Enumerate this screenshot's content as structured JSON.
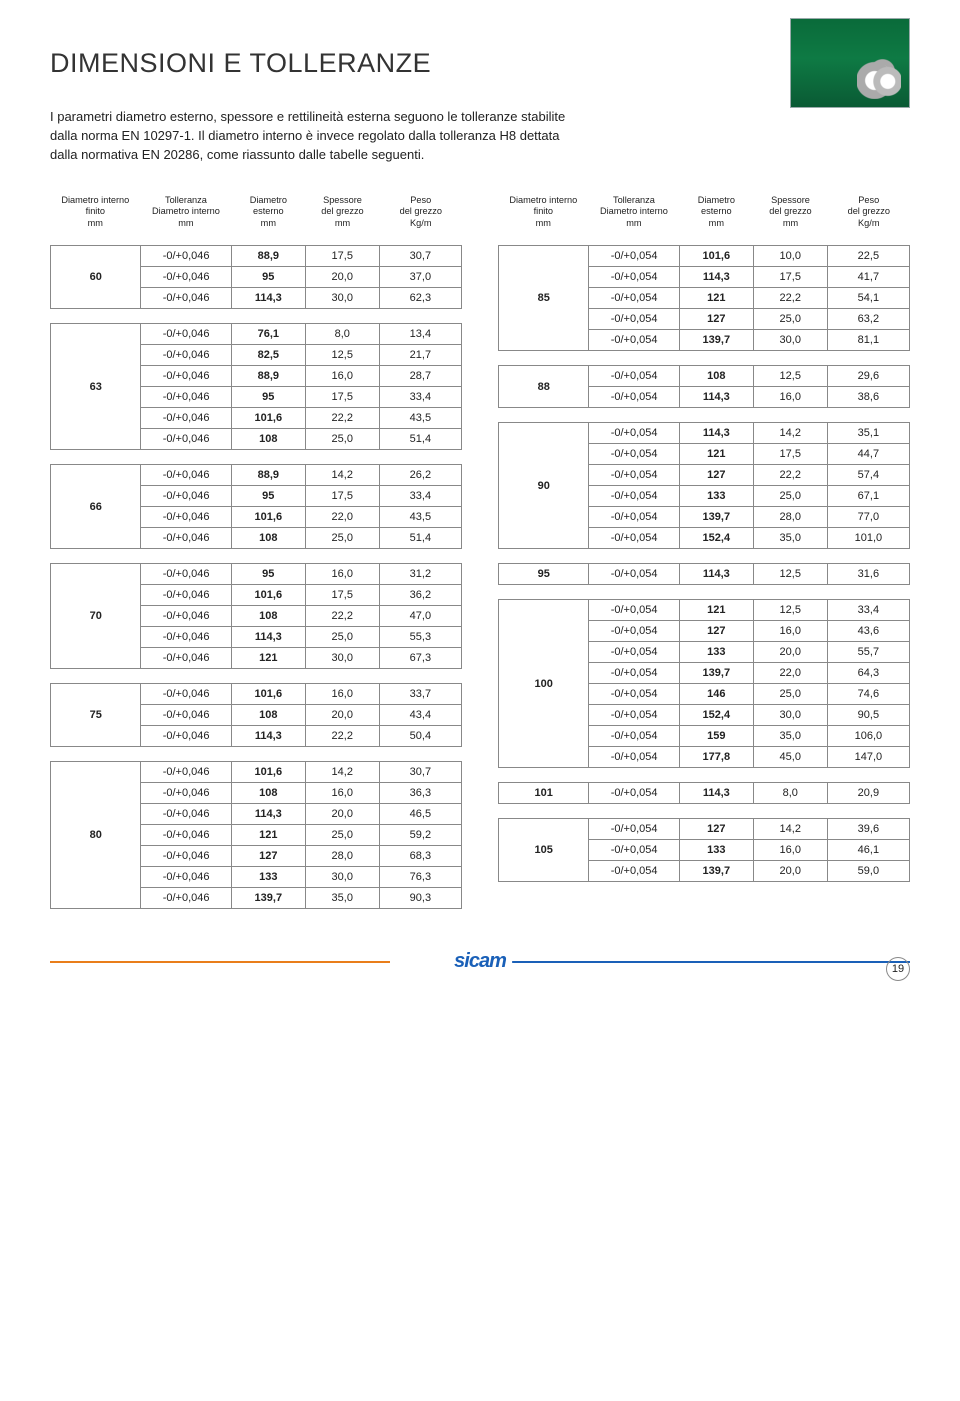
{
  "page": {
    "title": "DIMENSIONI E TOLLERANZE",
    "intro": "I parametri diametro esterno, spessore e rettilineità esterna seguono le tolleranze stabilite dalla norma EN 10297-1. Il diametro interno è invece regolato dalla tolleranza H8 dettata dalla normativa EN 20286, come riassunto dalle tabelle seguenti.",
    "pageNumber": "19",
    "logo": "sicam"
  },
  "columns": {
    "h1": [
      "Diametro interno",
      "finito",
      "mm"
    ],
    "h2": [
      "Tolleranza",
      "Diametro interno",
      "mm"
    ],
    "h3": [
      "Diametro",
      "esterno",
      "mm"
    ],
    "h4": [
      "Spessore",
      "del grezzo",
      "mm"
    ],
    "h5": [
      "Peso",
      "del grezzo",
      "Kg/m"
    ]
  },
  "colWidths": [
    "22%",
    "22%",
    "18%",
    "18%",
    "20%"
  ],
  "left": [
    {
      "id": "60",
      "rows": [
        [
          "-0/+0,046",
          "88,9",
          "17,5",
          "30,7"
        ],
        [
          "-0/+0,046",
          "95",
          "20,0",
          "37,0"
        ],
        [
          "-0/+0,046",
          "114,3",
          "30,0",
          "62,3"
        ]
      ]
    },
    {
      "id": "63",
      "rows": [
        [
          "-0/+0,046",
          "76,1",
          "8,0",
          "13,4"
        ],
        [
          "-0/+0,046",
          "82,5",
          "12,5",
          "21,7"
        ],
        [
          "-0/+0,046",
          "88,9",
          "16,0",
          "28,7"
        ],
        [
          "-0/+0,046",
          "95",
          "17,5",
          "33,4"
        ],
        [
          "-0/+0,046",
          "101,6",
          "22,2",
          "43,5"
        ],
        [
          "-0/+0,046",
          "108",
          "25,0",
          "51,4"
        ]
      ]
    },
    {
      "id": "66",
      "rows": [
        [
          "-0/+0,046",
          "88,9",
          "14,2",
          "26,2"
        ],
        [
          "-0/+0,046",
          "95",
          "17,5",
          "33,4"
        ],
        [
          "-0/+0,046",
          "101,6",
          "22,0",
          "43,5"
        ],
        [
          "-0/+0,046",
          "108",
          "25,0",
          "51,4"
        ]
      ]
    },
    {
      "id": "70",
      "rows": [
        [
          "-0/+0,046",
          "95",
          "16,0",
          "31,2"
        ],
        [
          "-0/+0,046",
          "101,6",
          "17,5",
          "36,2"
        ],
        [
          "-0/+0,046",
          "108",
          "22,2",
          "47,0"
        ],
        [
          "-0/+0,046",
          "114,3",
          "25,0",
          "55,3"
        ],
        [
          "-0/+0,046",
          "121",
          "30,0",
          "67,3"
        ]
      ]
    },
    {
      "id": "75",
      "rows": [
        [
          "-0/+0,046",
          "101,6",
          "16,0",
          "33,7"
        ],
        [
          "-0/+0,046",
          "108",
          "20,0",
          "43,4"
        ],
        [
          "-0/+0,046",
          "114,3",
          "22,2",
          "50,4"
        ]
      ]
    },
    {
      "id": "80",
      "rows": [
        [
          "-0/+0,046",
          "101,6",
          "14,2",
          "30,7"
        ],
        [
          "-0/+0,046",
          "108",
          "16,0",
          "36,3"
        ],
        [
          "-0/+0,046",
          "114,3",
          "20,0",
          "46,5"
        ],
        [
          "-0/+0,046",
          "121",
          "25,0",
          "59,2"
        ],
        [
          "-0/+0,046",
          "127",
          "28,0",
          "68,3"
        ],
        [
          "-0/+0,046",
          "133",
          "30,0",
          "76,3"
        ],
        [
          "-0/+0,046",
          "139,7",
          "35,0",
          "90,3"
        ]
      ]
    }
  ],
  "right": [
    {
      "id": "85",
      "rows": [
        [
          "-0/+0,054",
          "101,6",
          "10,0",
          "22,5"
        ],
        [
          "-0/+0,054",
          "114,3",
          "17,5",
          "41,7"
        ],
        [
          "-0/+0,054",
          "121",
          "22,2",
          "54,1"
        ],
        [
          "-0/+0,054",
          "127",
          "25,0",
          "63,2"
        ],
        [
          "-0/+0,054",
          "139,7",
          "30,0",
          "81,1"
        ]
      ]
    },
    {
      "id": "88",
      "rows": [
        [
          "-0/+0,054",
          "108",
          "12,5",
          "29,6"
        ],
        [
          "-0/+0,054",
          "114,3",
          "16,0",
          "38,6"
        ]
      ]
    },
    {
      "id": "90",
      "rows": [
        [
          "-0/+0,054",
          "114,3",
          "14,2",
          "35,1"
        ],
        [
          "-0/+0,054",
          "121",
          "17,5",
          "44,7"
        ],
        [
          "-0/+0,054",
          "127",
          "22,2",
          "57,4"
        ],
        [
          "-0/+0,054",
          "133",
          "25,0",
          "67,1"
        ],
        [
          "-0/+0,054",
          "139,7",
          "28,0",
          "77,0"
        ],
        [
          "-0/+0,054",
          "152,4",
          "35,0",
          "101,0"
        ]
      ]
    },
    {
      "id": "95",
      "rows": [
        [
          "-0/+0,054",
          "114,3",
          "12,5",
          "31,6"
        ]
      ]
    },
    {
      "id": "100",
      "rows": [
        [
          "-0/+0,054",
          "121",
          "12,5",
          "33,4"
        ],
        [
          "-0/+0,054",
          "127",
          "16,0",
          "43,6"
        ],
        [
          "-0/+0,054",
          "133",
          "20,0",
          "55,7"
        ],
        [
          "-0/+0,054",
          "139,7",
          "22,0",
          "64,3"
        ],
        [
          "-0/+0,054",
          "146",
          "25,0",
          "74,6"
        ],
        [
          "-0/+0,054",
          "152,4",
          "30,0",
          "90,5"
        ],
        [
          "-0/+0,054",
          "159",
          "35,0",
          "106,0"
        ],
        [
          "-0/+0,054",
          "177,8",
          "45,0",
          "147,0"
        ]
      ]
    },
    {
      "id": "101",
      "rows": [
        [
          "-0/+0,054",
          "114,3",
          "8,0",
          "20,9"
        ]
      ]
    },
    {
      "id": "105",
      "rows": [
        [
          "-0/+0,054",
          "127",
          "14,2",
          "39,6"
        ],
        [
          "-0/+0,054",
          "133",
          "16,0",
          "46,1"
        ],
        [
          "-0/+0,054",
          "139,7",
          "20,0",
          "59,0"
        ]
      ]
    }
  ]
}
